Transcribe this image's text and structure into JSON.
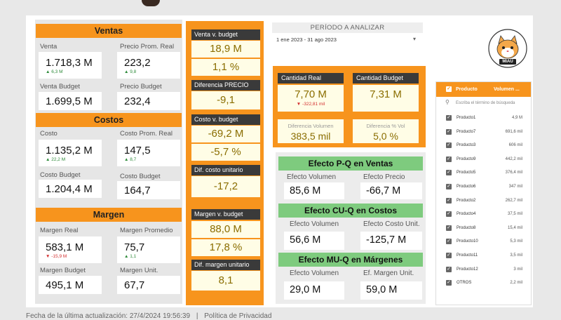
{
  "ventas": {
    "header": "Ventas",
    "venta_label": "Venta",
    "venta_value": "1.718,3 M",
    "venta_delta": "6,3 M",
    "prom_label": "Precio Prom. Real",
    "prom_value": "223,2",
    "prom_delta": "9,8",
    "budget_label": "Venta Budget",
    "budget_value": "1.699,5 M",
    "pbudget_label": "Precio Budget",
    "pbudget_value": "232,4"
  },
  "costos": {
    "header": "Costos",
    "costo_label": "Costo",
    "costo_value": "1.135,2 M",
    "costo_delta": "22,2 M",
    "prom_label": "Costo Prom. Real",
    "prom_value": "147,5",
    "prom_delta": "8,7",
    "budget_label": "Costo Budget",
    "budget_value": "1.204,4 M",
    "cbudget_label": "Costo Budget",
    "cbudget_value": "164,7"
  },
  "margen": {
    "header": "Margen",
    "real_label": "Margen Real",
    "real_value": "583,1 M",
    "real_delta": "-15,9 M",
    "prom_label": "Margen Promedio",
    "prom_value": "75,7",
    "prom_delta": "1,1",
    "budget_label": "Margen Budget",
    "budget_value": "495,1 M",
    "unit_label": "Margen Unit.",
    "unit_value": "67,7"
  },
  "diffs": {
    "venta_title": "Venta v. budget",
    "venta_abs": "18,9 M",
    "venta_pct": "1,1 %",
    "precio_title": "Diferencia PRECIO",
    "precio_value": "-9,1",
    "costo_title": "Costo v. budget",
    "costo_abs": "-69,2 M",
    "costo_pct": "-5,7 %",
    "costo_unit_title": "Dif. costo unitario",
    "costo_unit_value": "-17,2",
    "margen_title": "Margen v. budget",
    "margen_abs": "88,0 M",
    "margen_pct": "17,8 %",
    "margen_unit_title": "Dif. margen unitario",
    "margen_unit_value": "8,1"
  },
  "period": {
    "title": "PERÍODO A ANALIZAR",
    "value": "1 ene 2023 - 31 ago 2023"
  },
  "logo": {
    "text": "MIAU"
  },
  "cantidad": {
    "real_title": "Cantidad Real",
    "real_value": "7,70 M",
    "real_delta": "-322,81 mil",
    "budget_title": "Cantidad Budget",
    "budget_value": "7,31 M",
    "dif_vol_label": "Diferencia Volumen",
    "dif_vol_value": "383,5 mil",
    "dif_pct_label": "Diferencia % Vol",
    "dif_pct_value": "5,0 %"
  },
  "efectos": {
    "pq_title": "Efecto P-Q en Ventas",
    "pq_vol_label": "Efecto Volumen",
    "pq_vol_value": "85,6 M",
    "pq_precio_label": "Efecto Precio",
    "pq_precio_value": "-66,7 M",
    "cuq_title": "Efecto CU-Q en Costos",
    "cuq_vol_label": "Efecto Volumen",
    "cuq_vol_value": "56,6 M",
    "cuq_costo_label": "Efecto Costo Unit.",
    "cuq_costo_value": "-125,7 M",
    "muq_title": "Efecto MU-Q en Márgenes",
    "muq_vol_label": "Efecto Volumen",
    "muq_vol_value": "29,0 M",
    "muq_margen_label": "Ef. Margen Unit.",
    "muq_margen_value": "59,0 M"
  },
  "productos": {
    "col_producto": "Producto",
    "col_volumen": "Volumen ...",
    "search_placeholder": "Escriba el término de búsqueda",
    "items": [
      {
        "name": "Producto1",
        "value": "4,9 M"
      },
      {
        "name": "Producto7",
        "value": "691,6 mil"
      },
      {
        "name": "Producto3",
        "value": "606 mil"
      },
      {
        "name": "Producto9",
        "value": "442,2 mil"
      },
      {
        "name": "Producto5",
        "value": "376,4 mil"
      },
      {
        "name": "Producto6",
        "value": "347 mil"
      },
      {
        "name": "Producto2",
        "value": "262,7 mil"
      },
      {
        "name": "Producto4",
        "value": "37,5 mil"
      },
      {
        "name": "Producto8",
        "value": "15,4 mil"
      },
      {
        "name": "Producto10",
        "value": "5,3 mil"
      },
      {
        "name": "Producto11",
        "value": "3,5 mil"
      },
      {
        "name": "Producto12",
        "value": "3 mil"
      },
      {
        "name": "OTROS",
        "value": "2,2 mil"
      }
    ]
  },
  "footer": {
    "updated": "Fecha de la última actualización: 27/4/2024 19:56:39",
    "separator": "|",
    "privacy": "Política de Privacidad"
  }
}
